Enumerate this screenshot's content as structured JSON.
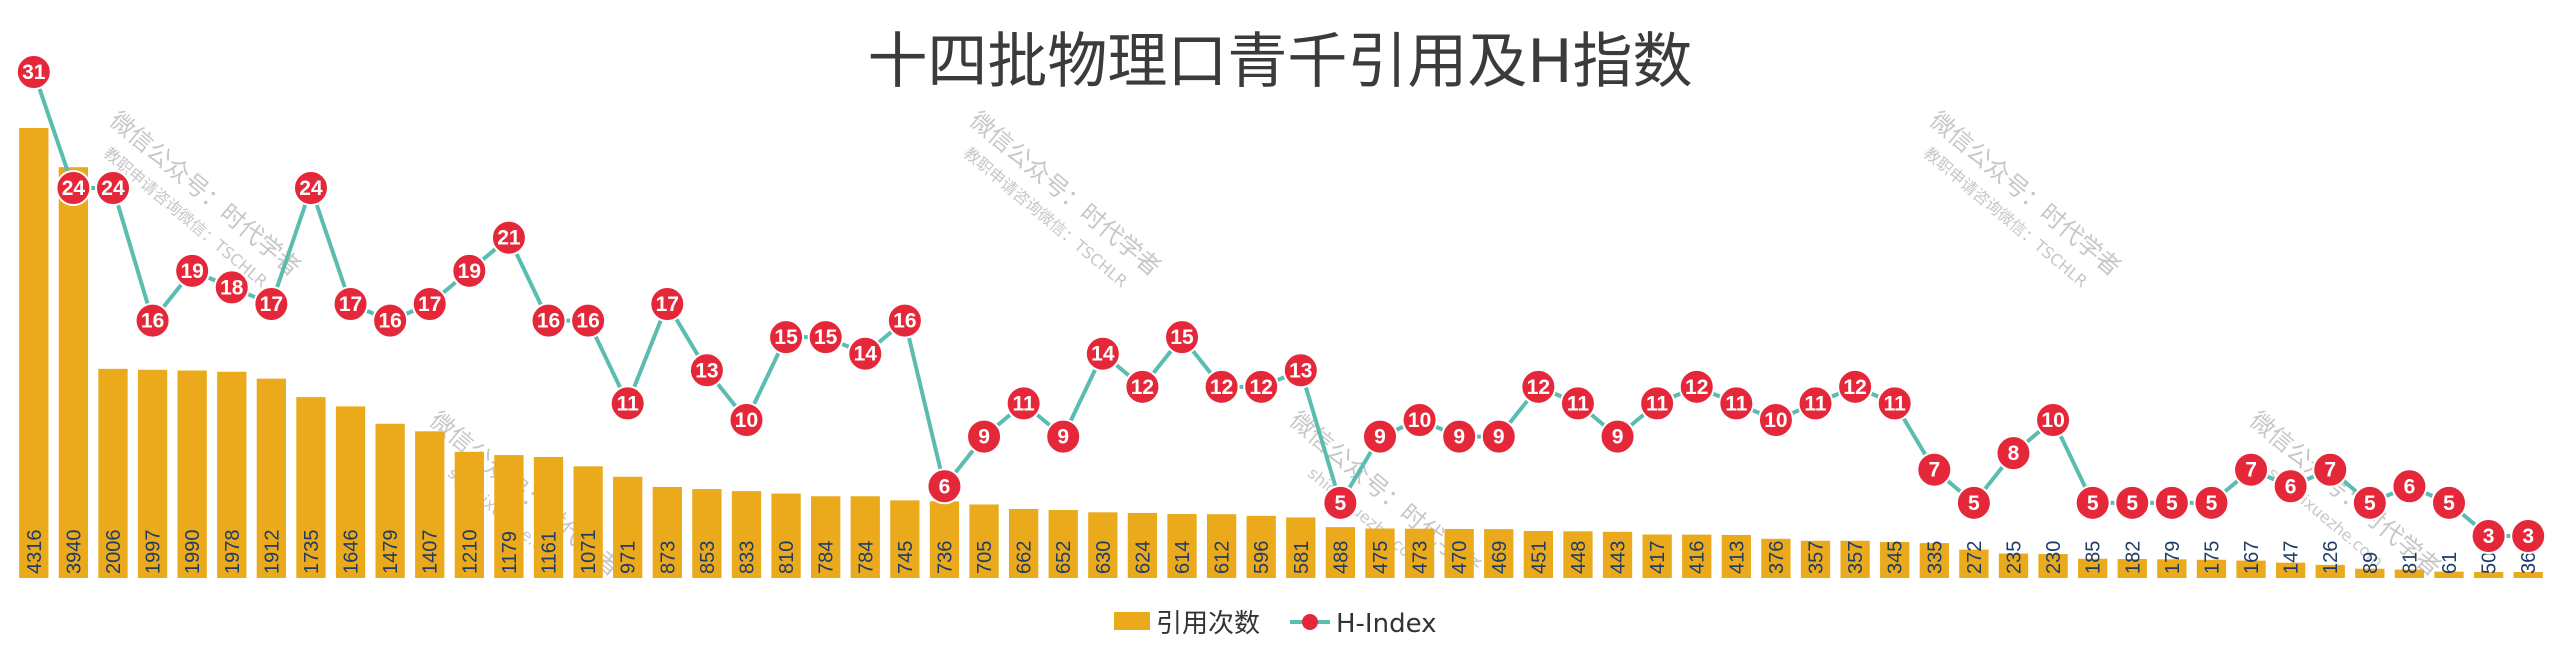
{
  "chart_data": {
    "type": "bar",
    "title": "十四批物理口青千引用及H指数",
    "legend": {
      "placement": "bottom-center"
    },
    "grid": false,
    "colors": {
      "bar": "#EAAA1B",
      "line": "#5BBCB0",
      "marker": "#E5273A",
      "marker_label": "#FFFFFF",
      "bar_label": "#1F3C66"
    },
    "series": [
      {
        "name": "引用次数",
        "type": "bar",
        "values": [
          4316,
          3940,
          2006,
          1997,
          1990,
          1978,
          1912,
          1735,
          1646,
          1479,
          1407,
          1210,
          1179,
          1161,
          1071,
          971,
          873,
          853,
          833,
          810,
          784,
          784,
          745,
          736,
          705,
          662,
          652,
          630,
          624,
          614,
          612,
          596,
          581,
          488,
          475,
          473,
          470,
          469,
          451,
          448,
          443,
          417,
          416,
          413,
          376,
          357,
          357,
          345,
          335,
          272,
          235,
          230,
          185,
          182,
          179,
          175,
          167,
          147,
          126,
          89,
          81,
          61,
          50,
          36
        ],
        "labels": [
          "4316",
          "3940",
          "2006",
          "1997",
          "1990",
          "1978",
          "1912",
          "1735",
          "1646",
          "1479",
          "1407",
          "1210",
          "1179",
          "1161",
          "1071",
          "971",
          "873",
          "853",
          "833",
          "810",
          "784",
          "784",
          "745",
          "736",
          "705",
          "662",
          "652",
          "630",
          "624",
          "614",
          "612",
          "596",
          "581",
          "488",
          "475",
          "473",
          "470",
          "469",
          "451",
          "448",
          "443",
          "417",
          "416",
          "413",
          "376",
          "357",
          "357",
          "345",
          "335",
          "272",
          "235",
          "230",
          "185",
          "182",
          "179",
          "175",
          "167",
          "147",
          "126",
          "89",
          "81",
          "61",
          "50",
          "36"
        ]
      },
      {
        "name": "H-Index",
        "type": "line",
        "values": [
          31,
          24,
          24,
          16,
          19,
          18,
          17,
          24,
          17,
          16,
          17,
          19,
          21,
          16,
          16,
          11,
          17,
          13,
          10,
          15,
          15,
          14,
          16,
          6,
          9,
          11,
          9,
          14,
          12,
          15,
          12,
          12,
          13,
          5,
          9,
          10,
          9,
          9,
          12,
          11,
          9,
          11,
          12,
          11,
          10,
          11,
          12,
          11,
          7,
          5,
          8,
          10,
          5,
          5,
          5,
          5,
          7,
          6,
          7,
          5,
          6,
          5,
          3,
          3
        ],
        "labels": [
          "31",
          "24",
          "24",
          "16",
          "19",
          "18",
          "17",
          "24",
          "17",
          "16",
          "17",
          "19",
          "21",
          "16",
          "16",
          "11",
          "17",
          "13",
          "10",
          "15",
          "15",
          "14",
          "16",
          "6",
          "9",
          "11",
          "9",
          "14",
          "12",
          "15",
          "12",
          "12",
          "13",
          "5",
          "9",
          "10",
          "9",
          "9",
          "12",
          "11",
          "9",
          "11",
          "12",
          "11",
          "10",
          "11",
          "12",
          "11",
          "7",
          "5",
          "8",
          "10",
          "5",
          "5",
          "5",
          "5",
          "7",
          "6",
          "7",
          "5",
          "6",
          "5",
          "3",
          "3"
        ]
      }
    ]
  },
  "watermarks": [
    {
      "line1": "微信公众号：时代学者",
      "line2": "教职申请咨询微信：TSCHLR"
    },
    {
      "line1": "微信公众号：时代学者",
      "line2": "shidaixuezhe.com"
    }
  ]
}
